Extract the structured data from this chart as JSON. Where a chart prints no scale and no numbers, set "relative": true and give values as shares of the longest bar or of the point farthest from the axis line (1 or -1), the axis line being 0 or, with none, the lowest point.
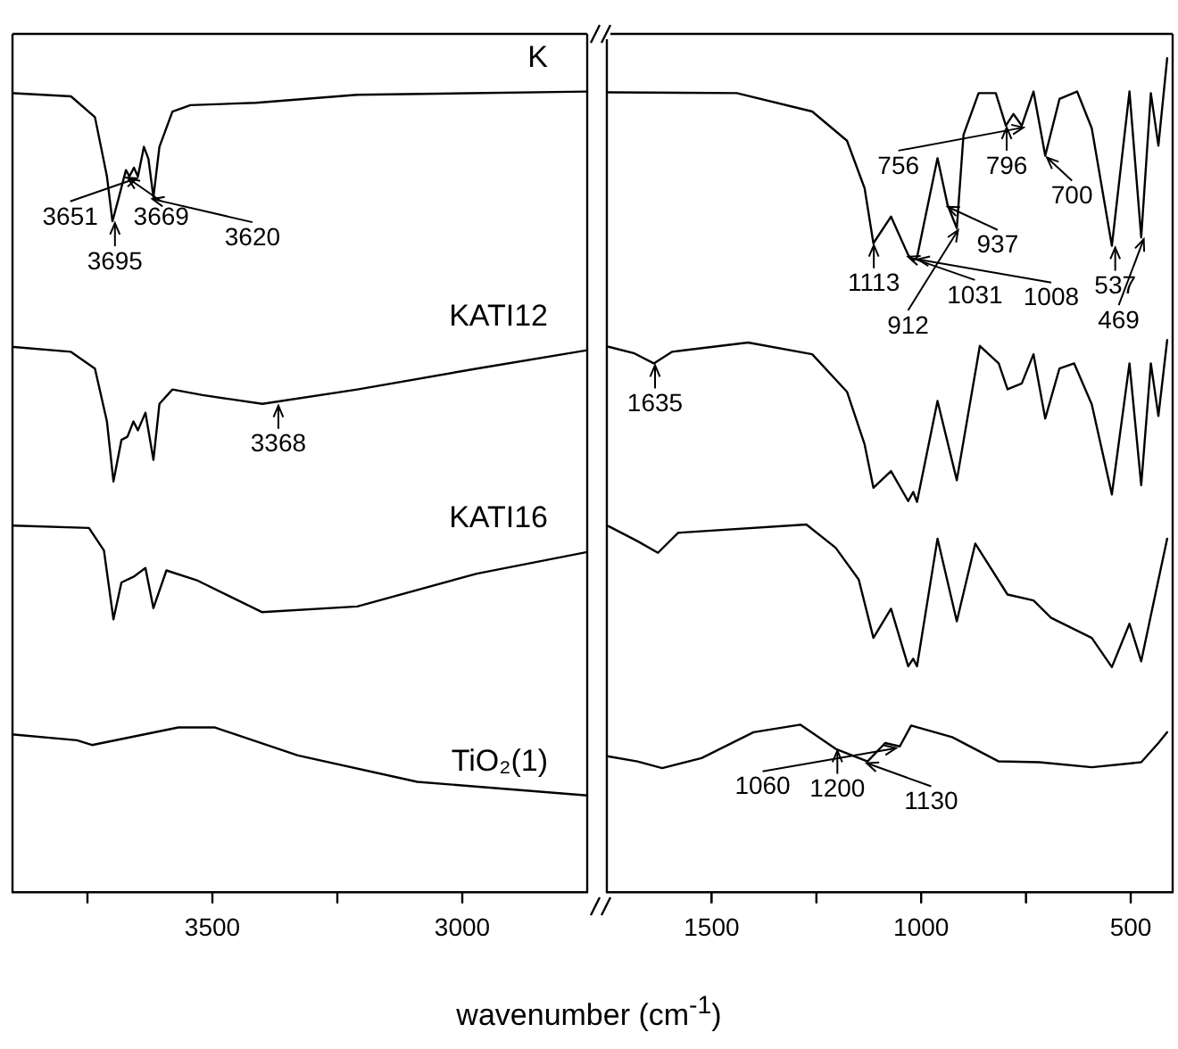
{
  "chart_data": [
    {
      "type": "line",
      "relative": true,
      "xlim": [
        3900,
        2750
      ],
      "xticks": [
        {
          "value": 3750,
          "label": null
        },
        3500,
        {
          "value": 3250,
          "label": null
        },
        3000
      ],
      "xlabel": "wavenumber (cm$^{-1}$)",
      "series": [
        {
          "name": "K",
          "color": "#000000",
          "x": [
            3897,
            3783,
            3735,
            3711,
            3700,
            3688,
            3673,
            3666,
            3657,
            3649,
            3637,
            3628,
            3618,
            3606,
            3580,
            3544,
            3413,
            3210,
            2750
          ],
          "values": [
            0.998,
            0.994,
            0.968,
            0.894,
            0.838,
            0.866,
            0.902,
            0.894,
            0.905,
            0.894,
            0.931,
            0.916,
            0.868,
            0.931,
            0.975,
            0.983,
            0.986,
            0.996,
            1.0
          ]
        },
        {
          "name": "KATI12",
          "color": "#000000",
          "x": [
            3897,
            3783,
            3735,
            3711,
            3698,
            3682,
            3670,
            3658,
            3649,
            3634,
            3618,
            3606,
            3580,
            3520,
            3400,
            3210,
            2971,
            2750
          ],
          "values": [
            0.681,
            0.675,
            0.654,
            0.588,
            0.513,
            0.565,
            0.569,
            0.588,
            0.577,
            0.599,
            0.54,
            0.61,
            0.628,
            0.621,
            0.61,
            0.628,
            0.654,
            0.677
          ]
        },
        {
          "name": "KATI16",
          "color": "#000000",
          "x": [
            3897,
            3747,
            3717,
            3698,
            3682,
            3658,
            3634,
            3618,
            3592,
            3532,
            3401,
            3210,
            2971,
            2750
          ],
          "values": [
            0.458,
            0.455,
            0.427,
            0.341,
            0.387,
            0.394,
            0.405,
            0.355,
            0.402,
            0.39,
            0.35,
            0.357,
            0.398,
            0.425
          ]
        },
        {
          "name": "TiO₂(1)",
          "color": "#000000",
          "x": [
            3897,
            3771,
            3741,
            3568,
            3496,
            3329,
            3090,
            2750
          ],
          "values": [
            0.197,
            0.19,
            0.184,
            0.206,
            0.206,
            0.171,
            0.138,
            0.121
          ]
        }
      ],
      "annotations": [
        {
          "text": "3695",
          "x": 3695,
          "y": 0.838
        },
        {
          "text": "3669",
          "x": 3669,
          "y": 0.894
        },
        {
          "text": "3651",
          "x": 3651,
          "y": 0.894
        },
        {
          "text": "3620",
          "x": 3620,
          "y": 0.868
        },
        {
          "text": "3368",
          "x": 3368,
          "y": 0.61
        }
      ]
    },
    {
      "type": "line",
      "relative": true,
      "xlim": [
        1750,
        400
      ],
      "xticks": [
        1500,
        {
          "value": 1250,
          "label": null
        },
        1000,
        {
          "value": 750,
          "label": null
        },
        500
      ],
      "series": [
        {
          "color": "#000000",
          "x": [
            1746,
            1440,
            1260,
            1177,
            1135,
            1114,
            1072,
            1031,
            1019,
            1010,
            961,
            937,
            915,
            899,
            863,
            822,
            798,
            780,
            760,
            732,
            704,
            670,
            628,
            593,
            545,
            503,
            475,
            452,
            434,
            413
          ],
          "values": [
            0.959,
            0.958,
            0.936,
            0.901,
            0.844,
            0.778,
            0.81,
            0.764,
            0.757,
            0.761,
            0.88,
            0.824,
            0.796,
            0.908,
            0.958,
            0.958,
            0.919,
            0.933,
            0.919,
            0.96,
            0.883,
            0.951,
            0.96,
            0.916,
            0.775,
            0.96,
            0.785,
            0.958,
            0.895,
            1.0
          ]
        },
        {
          "color": "#000000",
          "x": [
            1746,
            1684,
            1638,
            1594,
            1413,
            1260,
            1177,
            1135,
            1114,
            1072,
            1031,
            1019,
            1010,
            961,
            915,
            860,
            815,
            794,
            760,
            732,
            704,
            670,
            635,
            593,
            545,
            503,
            475,
            452,
            434,
            413
          ],
          "values": [
            0.654,
            0.646,
            0.634,
            0.648,
            0.659,
            0.645,
            0.6,
            0.537,
            0.485,
            0.505,
            0.469,
            0.48,
            0.468,
            0.589,
            0.494,
            0.655,
            0.634,
            0.603,
            0.61,
            0.645,
            0.568,
            0.628,
            0.634,
            0.585,
            0.477,
            0.634,
            0.488,
            0.634,
            0.571,
            0.662
          ]
        },
        {
          "color": "#000000",
          "x": [
            1746,
            1677,
            1628,
            1580,
            1274,
            1204,
            1149,
            1114,
            1072,
            1031,
            1019,
            1010,
            961,
            915,
            871,
            794,
            732,
            690,
            593,
            545,
            503,
            475,
            452,
            413
          ],
          "values": [
            0.439,
            0.421,
            0.407,
            0.431,
            0.441,
            0.413,
            0.375,
            0.305,
            0.34,
            0.271,
            0.28,
            0.271,
            0.424,
            0.325,
            0.418,
            0.357,
            0.35,
            0.329,
            0.305,
            0.27,
            0.322,
            0.277,
            0.332,
            0.424
          ]
        },
        {
          "color": "#000000",
          "x": [
            1746,
            1677,
            1618,
            1524,
            1400,
            1288,
            1204,
            1128,
            1086,
            1051,
            1024,
            926,
            815,
            718,
            593,
            475,
            434,
            413
          ],
          "values": [
            0.163,
            0.157,
            0.149,
            0.161,
            0.192,
            0.201,
            0.172,
            0.157,
            0.179,
            0.175,
            0.2,
            0.186,
            0.157,
            0.156,
            0.15,
            0.156,
            0.179,
            0.192
          ]
        }
      ],
      "annotations": [
        {
          "text": "1635",
          "x": 1635,
          "y": 0.634
        },
        {
          "text": "1113",
          "x": 1113,
          "y": 0.778
        },
        {
          "text": "1031",
          "x": 1031,
          "y": 0.764
        },
        {
          "text": "1008",
          "x": 1008,
          "y": 0.761
        },
        {
          "text": "937",
          "x": 937,
          "y": 0.824
        },
        {
          "text": "912",
          "x": 912,
          "y": 0.796
        },
        {
          "text": "796",
          "x": 796,
          "y": 0.919
        },
        {
          "text": "756",
          "x": 756,
          "y": 0.919
        },
        {
          "text": "700",
          "x": 700,
          "y": 0.883
        },
        {
          "text": "537",
          "x": 537,
          "y": 0.775
        },
        {
          "text": "469",
          "x": 469,
          "y": 0.785
        },
        {
          "text": "1200",
          "x": 1200,
          "y": 0.172
        },
        {
          "text": "1130",
          "x": 1130,
          "y": 0.157
        },
        {
          "text": "1060",
          "x": 1060,
          "y": 0.175
        }
      ]
    }
  ]
}
